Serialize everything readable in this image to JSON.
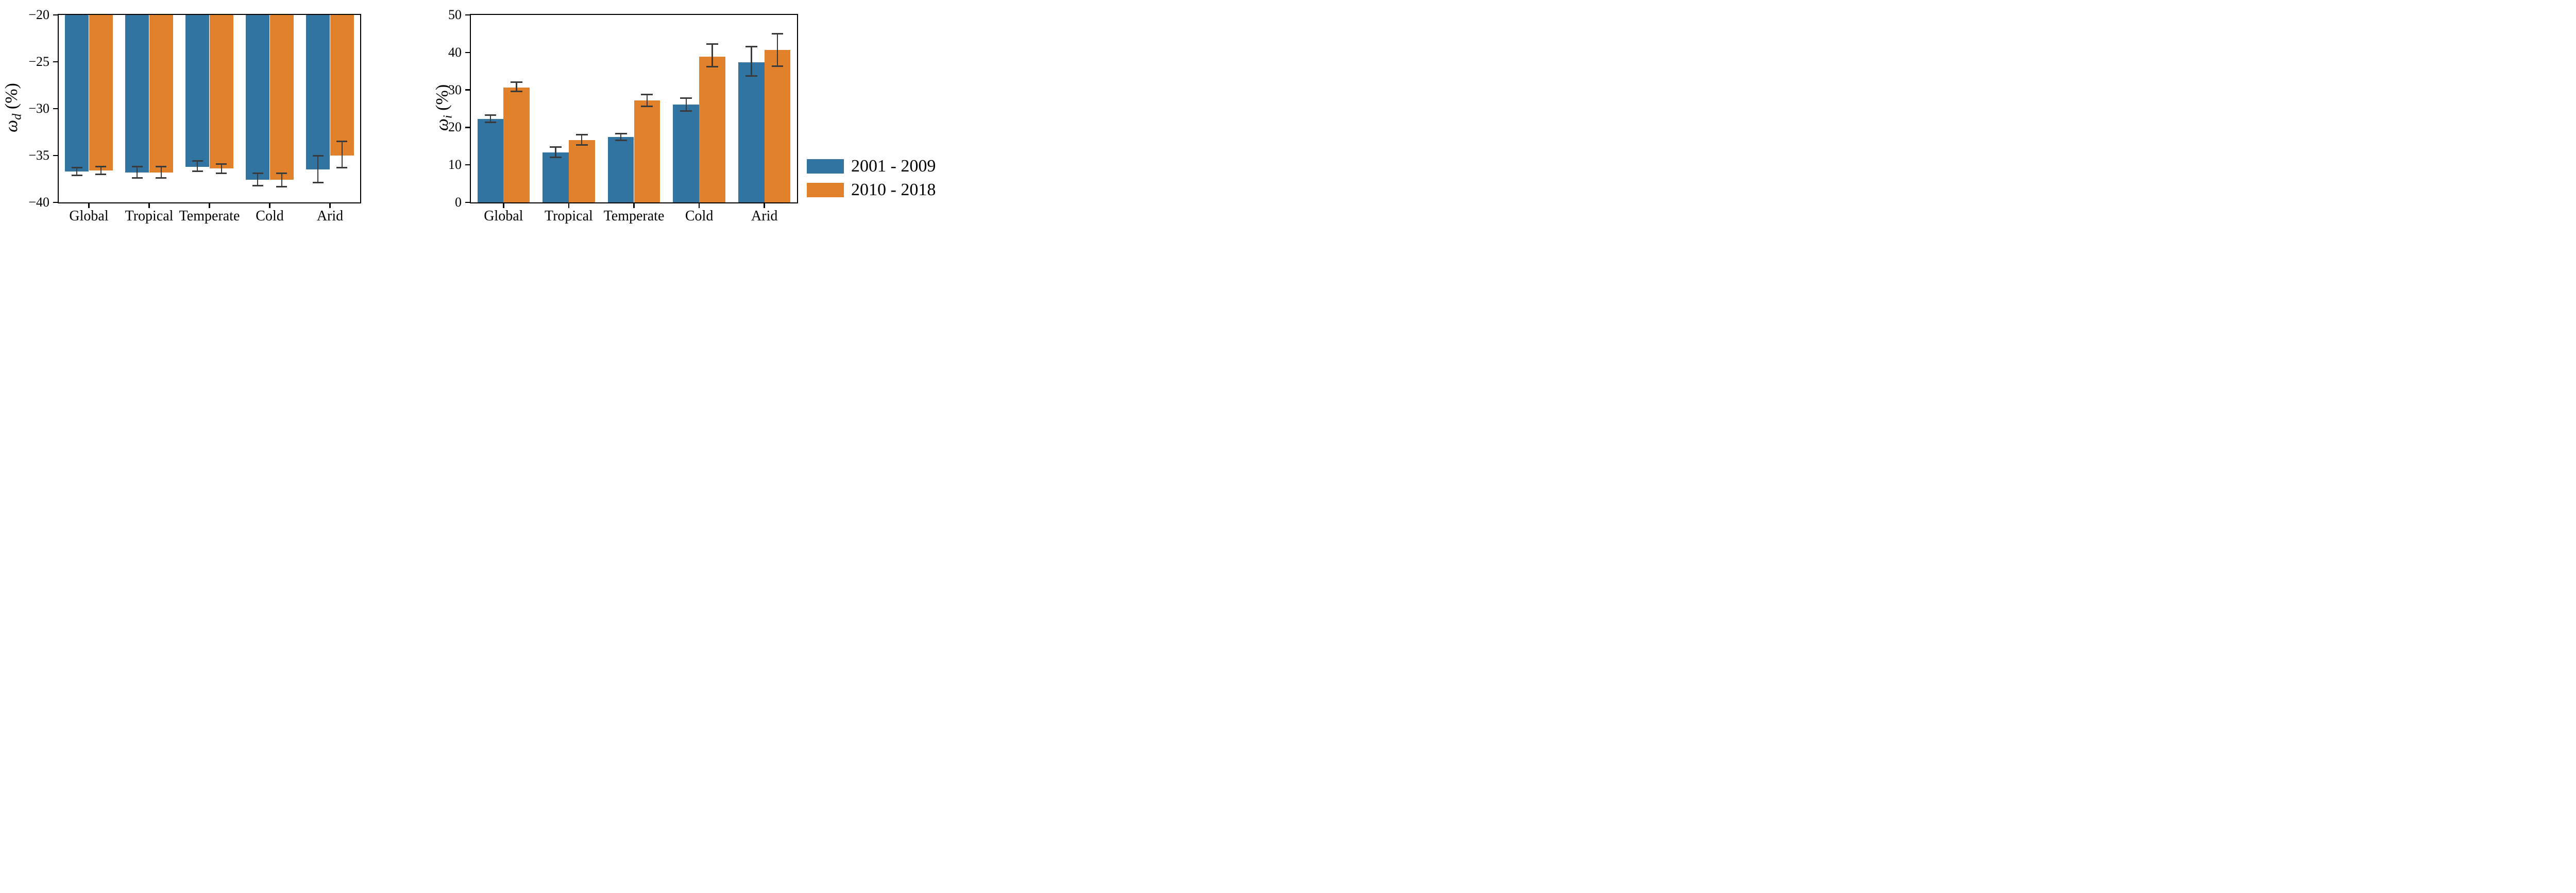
{
  "figure": {
    "background": "#ffffff",
    "axis_color": "#000000",
    "error_bar_color": "#3a3a3a"
  },
  "legend": {
    "position": "right-of-second-chart",
    "items": [
      {
        "label": "2001 - 2009",
        "color": "#3274a1"
      },
      {
        "label": "2010 - 2018",
        "color": "#e1812c"
      }
    ]
  },
  "chart_data": [
    {
      "id": "omega-d",
      "type": "bar",
      "title": "",
      "xlabel": "",
      "ylabel": {
        "symbol": "ω",
        "sub": "d",
        "unit": "(%)",
        "text": "ω_d (%)"
      },
      "categories": [
        "Global",
        "Tropical",
        "Temperate",
        "Cold",
        "Arid"
      ],
      "ylim": [
        -40,
        -20
      ],
      "bar_baseline": 0,
      "grid": false,
      "yticks": [
        {
          "value": -20,
          "label": "−20"
        },
        {
          "value": -25,
          "label": "−25"
        },
        {
          "value": -30,
          "label": "−30"
        },
        {
          "value": -35,
          "label": "−35"
        },
        {
          "value": -40,
          "label": "−40"
        }
      ],
      "series": [
        {
          "name": "2001 - 2009",
          "color": "#3274a1",
          "values": [
            -36.7,
            -36.8,
            -36.2,
            -37.6,
            -36.5
          ],
          "error_low": [
            -37.1,
            -37.4,
            -36.7,
            -38.2,
            -37.9
          ],
          "error_high": [
            -36.3,
            -36.2,
            -35.6,
            -36.9,
            -35.0
          ]
        },
        {
          "name": "2010 - 2018",
          "color": "#e1812c",
          "values": [
            -36.6,
            -36.8,
            -36.4,
            -37.6,
            -35.0
          ],
          "error_low": [
            -37.0,
            -37.4,
            -36.9,
            -38.3,
            -36.3
          ],
          "error_high": [
            -36.2,
            -36.2,
            -35.9,
            -36.9,
            -33.5
          ]
        }
      ]
    },
    {
      "id": "omega-i",
      "type": "bar",
      "title": "",
      "xlabel": "",
      "ylabel": {
        "symbol": "ω",
        "sub": "i",
        "unit": "(%)",
        "text": "ω_i (%)"
      },
      "categories": [
        "Global",
        "Tropical",
        "Temperate",
        "Cold",
        "Arid"
      ],
      "ylim": [
        0,
        50
      ],
      "bar_baseline": 0,
      "grid": false,
      "yticks": [
        {
          "value": 0,
          "label": "0"
        },
        {
          "value": 10,
          "label": "10"
        },
        {
          "value": 20,
          "label": "20"
        },
        {
          "value": 30,
          "label": "30"
        },
        {
          "value": 40,
          "label": "40"
        },
        {
          "value": 50,
          "label": "50"
        }
      ],
      "series": [
        {
          "name": "2001 - 2009",
          "color": "#3274a1",
          "values": [
            22.2,
            13.3,
            17.4,
            26.1,
            37.4
          ],
          "error_low": [
            21.3,
            12.0,
            16.5,
            24.4,
            33.7
          ],
          "error_high": [
            23.3,
            14.8,
            18.3,
            27.8,
            41.6
          ]
        },
        {
          "name": "2010 - 2018",
          "color": "#e1812c",
          "values": [
            30.7,
            16.6,
            27.2,
            38.9,
            40.7
          ],
          "error_low": [
            29.6,
            15.3,
            25.6,
            36.2,
            36.4
          ],
          "error_high": [
            32.1,
            18.1,
            28.8,
            42.3,
            45.0
          ]
        }
      ]
    }
  ]
}
